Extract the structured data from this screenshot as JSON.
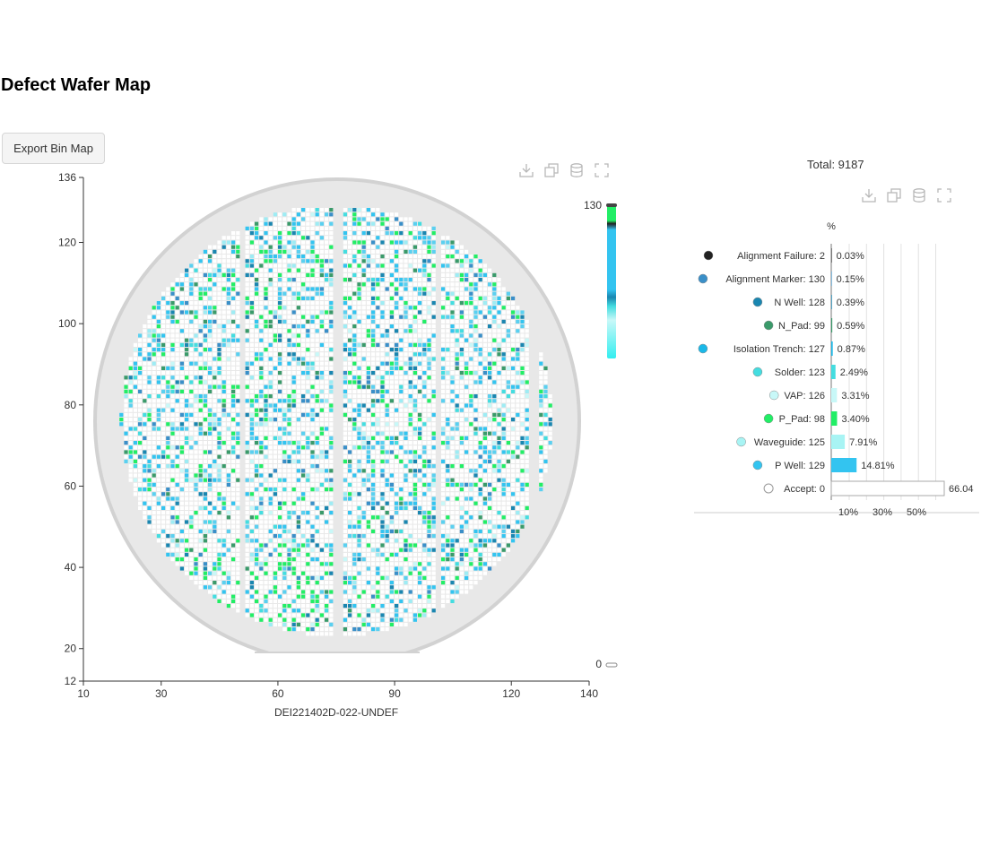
{
  "page": {
    "title": "Defect Wafer Map"
  },
  "toolbar": {
    "export_label": "Export Bin Map"
  },
  "toolbox_icons": [
    "download-icon",
    "restore-icon",
    "data-view-icon",
    "fullscreen-icon"
  ],
  "colors": {
    "wafer_fill": "#e8e8e8",
    "wafer_ring": "#d2d2d2",
    "die_empty": "#ffffff",
    "accent_green": "#22ee66",
    "accent_blue": "#33c4f0"
  },
  "wafer_map": {
    "x_label": "DEI221402D-022-UNDEF",
    "x_ticks": [
      10,
      30,
      60,
      90,
      120,
      140
    ],
    "y_ticks": [
      12,
      20,
      40,
      60,
      80,
      100,
      120,
      136
    ],
    "x_range": [
      10,
      140
    ],
    "y_range": [
      12,
      136
    ],
    "visual_map": {
      "max": "130",
      "min": "0"
    }
  },
  "summary": {
    "total_label": "Total: 9187"
  },
  "chart_data": {
    "type": "bar",
    "orientation": "horizontal",
    "unit_label": "%",
    "x_ticks": [
      "10%",
      "30%",
      "50%"
    ],
    "categories": [
      "Alignment Failure: 2",
      "Alignment Marker: 130",
      "N Well: 128",
      "N_Pad: 99",
      "Isolation Trench: 127",
      "Solder: 123",
      "VAP: 126",
      "P_Pad: 98",
      "Waveguide: 125",
      "P Well: 129",
      "Accept: 0"
    ],
    "values": [
      0.03,
      0.15,
      0.39,
      0.59,
      0.87,
      2.49,
      3.31,
      3.4,
      7.91,
      14.81,
      66.04
    ],
    "value_labels": [
      "0.03%",
      "0.15%",
      "0.39%",
      "0.59%",
      "0.87%",
      "2.49%",
      "3.31%",
      "3.40%",
      "7.91%",
      "14.81%",
      "66.04"
    ],
    "colors": [
      "#222222",
      "#3a8fc8",
      "#1a86b0",
      "#3a9a6a",
      "#1ab8e8",
      "#44dde0",
      "#c8f8f8",
      "#22ee66",
      "#a8f4f4",
      "#33c4f0",
      "#ffffff"
    ]
  }
}
